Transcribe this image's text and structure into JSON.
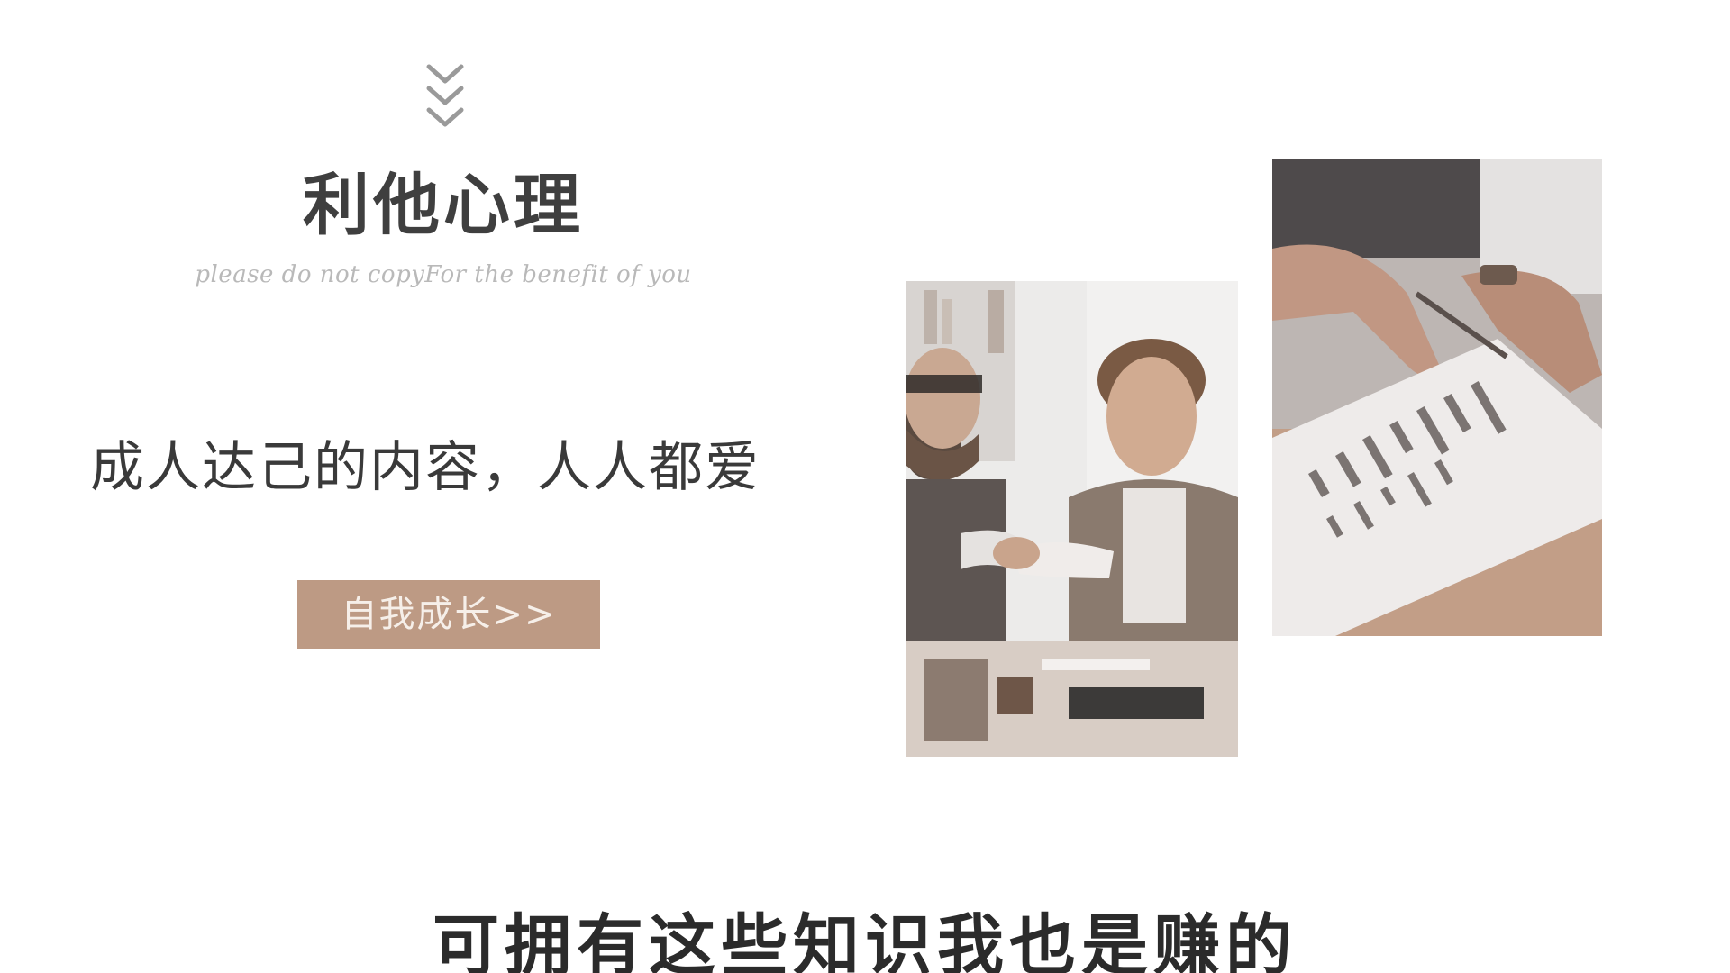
{
  "slide": {
    "title": "利他心理",
    "subtitle": "please do not copyFor the benefit of you",
    "tagline": "成人达己的内容，人人都爱",
    "cta_label": "自我成长>>",
    "caption": "可拥有这些知识我也是赚的"
  },
  "icons": {
    "scroll_indicator": "triple-chevron-down-icon"
  },
  "photos": [
    {
      "name": "handshake-photo"
    },
    {
      "name": "chart-report-photo"
    }
  ],
  "colors": {
    "accent": "#bd9a84",
    "title_text": "#3f3f3f",
    "subtitle_text": "#b9b9b9",
    "body_text": "#3a3a3a",
    "caption_text": "#2b2b2b",
    "background": "#ffffff"
  }
}
